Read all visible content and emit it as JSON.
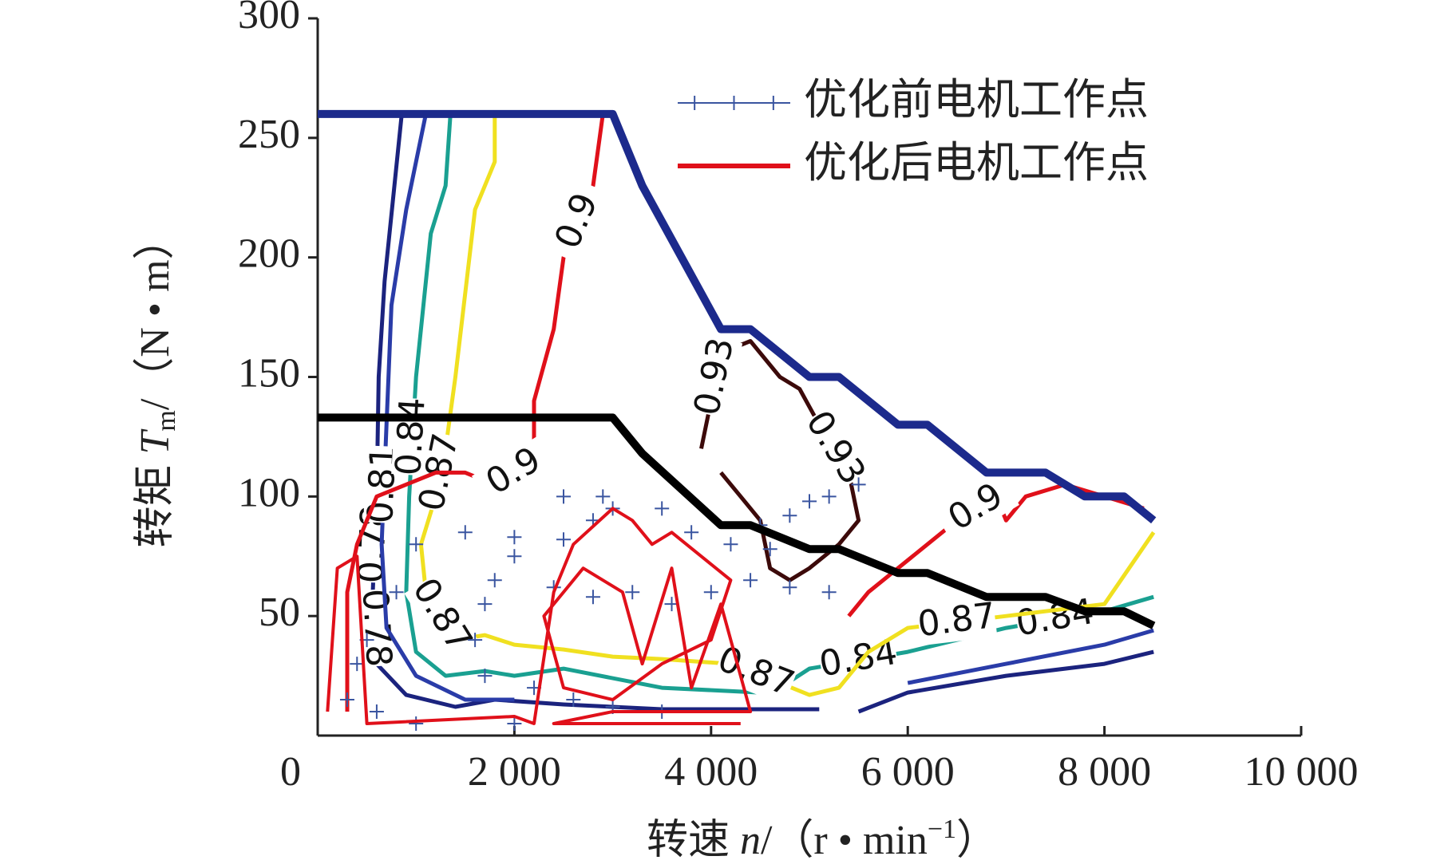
{
  "chart_data": {
    "type": "contour",
    "xlabel": {
      "prefix": "转速",
      "symbol": "n",
      "unit": "/（r • min",
      "superscript": "−1",
      "close": "）"
    },
    "ylabel": {
      "prefix": "转矩",
      "symbol": "T",
      "subscript": "m",
      "unit": "/（N • m）"
    },
    "xlim": [
      0,
      10000
    ],
    "ylim": [
      0,
      300
    ],
    "xticks": [
      0,
      {
        "value": 2000,
        "label": "2 000"
      },
      {
        "value": 4000,
        "label": "4 000"
      },
      {
        "value": 6000,
        "label": "6 000"
      },
      {
        "value": 8000,
        "label": "8 000"
      },
      {
        "value": 10000,
        "label": "10 000"
      }
    ],
    "yticks": [
      50,
      100,
      150,
      200,
      250,
      300
    ],
    "legend": "upper right",
    "curves": [
      {
        "color": "#1c2a8c",
        "x": [
          0,
          3000,
          3300,
          4100,
          4400,
          5000,
          5300,
          5900,
          6200,
          6800,
          7400,
          7800,
          8200,
          8500
        ],
        "y": [
          260,
          260,
          230,
          170,
          170,
          150,
          150,
          130,
          130,
          110,
          110,
          100,
          100,
          90
        ]
      },
      {
        "color": "#000000",
        "x": [
          0,
          3000,
          3300,
          4100,
          4400,
          5000,
          5300,
          5900,
          6200,
          6800,
          7400,
          7800,
          8200,
          8500
        ],
        "y": [
          133,
          133,
          118,
          88,
          88,
          78,
          78,
          68,
          68,
          58,
          58,
          52,
          52,
          46
        ]
      }
    ],
    "contours": [
      {
        "level": 0.78,
        "color": "#1b237e",
        "x": [
          855,
          780,
          680,
          620,
          600,
          560,
          600,
          900,
          1400,
          1800,
          2500,
          3500,
          4500,
          5100,
          null,
          5500,
          6000,
          7000,
          8000,
          8500
        ],
        "y": [
          260,
          230,
          190,
          150,
          100,
          60,
          30,
          17,
          12,
          15,
          13,
          11,
          11,
          11,
          null,
          10,
          18,
          25,
          30,
          35
        ]
      },
      {
        "level": 0.81,
        "color": "#2a3ca8",
        "x": [
          1100,
          900,
          750,
          700,
          650,
          700,
          1000,
          1500,
          2000,
          null,
          6000,
          7000,
          8000,
          8500
        ],
        "y": [
          260,
          220,
          180,
          130,
          80,
          45,
          25,
          15,
          15,
          null,
          22,
          30,
          38,
          44
        ]
      },
      {
        "level": 0.84,
        "color": "#1aa091",
        "x": [
          1350,
          1300,
          1150,
          1000,
          930,
          900,
          1000,
          1300,
          1700,
          2000,
          2500,
          3500,
          4500,
          4700,
          5000,
          6000,
          7000,
          8000,
          8500
        ],
        "y": [
          260,
          230,
          210,
          150,
          100,
          60,
          35,
          25,
          27,
          25,
          28,
          20,
          18,
          20,
          28,
          35,
          45,
          52,
          58
        ]
      },
      {
        "level": 0.87,
        "color": "#f0e020",
        "x": [
          1800,
          1800,
          1600,
          1400,
          1300,
          1200,
          1050,
          1100,
          1400,
          1700,
          2000,
          2500,
          3000,
          3500,
          4200,
          4700,
          5000,
          5300,
          5600,
          6000,
          7000,
          8000,
          8500
        ],
        "y": [
          260,
          240,
          220,
          150,
          120,
          100,
          80,
          60,
          40,
          42,
          38,
          36,
          33,
          32,
          30,
          22,
          17,
          20,
          35,
          45,
          50,
          55,
          85
        ]
      },
      {
        "level": 0.9,
        "color": "#e0101a",
        "x": [
          2900,
          2800,
          2500,
          2400,
          2200,
          2200,
          1800,
          1500,
          1200,
          600,
          400,
          300,
          300,
          null,
          5400,
          5600,
          6200,
          6500,
          6900,
          7000,
          7200,
          7600,
          8000,
          8400
        ],
        "y": [
          260,
          230,
          200,
          170,
          140,
          115,
          105,
          110,
          110,
          100,
          80,
          60,
          10,
          null,
          50,
          60,
          80,
          90,
          100,
          90,
          100,
          105,
          100,
          95
        ]
      },
      {
        "level": 0.93,
        "color": "#3c0a0a",
        "x": [
          3900,
          4000,
          4100,
          4400,
          4500,
          4700,
          4900,
          5100,
          5400,
          5500,
          5300,
          5000,
          4800,
          4600,
          4500,
          4300,
          4100
        ],
        "y": [
          120,
          140,
          160,
          165,
          160,
          150,
          145,
          130,
          110,
          90,
          80,
          70,
          65,
          70,
          90,
          100,
          110
        ]
      }
    ],
    "series": [
      {
        "name": "优化前电机工作点",
        "color": "#3a55a0",
        "marker": "+",
        "x": [
          300,
          500,
          800,
          1000,
          1500,
          2000,
          2500,
          2800,
          3000,
          3500,
          3800,
          4200,
          4500,
          4800,
          5200,
          5500,
          5000,
          4600,
          4400,
          4000,
          3600,
          3200,
          2800,
          2400,
          2000,
          1800,
          1700,
          1600,
          1700,
          2200,
          2600,
          3000,
          3500,
          2000,
          1000,
          600,
          400,
          5200,
          4800,
          2500,
          2900
        ],
        "y": [
          15,
          40,
          60,
          80,
          85,
          83,
          82,
          90,
          95,
          95,
          85,
          80,
          88,
          92,
          100,
          105,
          98,
          78,
          65,
          60,
          55,
          60,
          58,
          62,
          75,
          65,
          55,
          40,
          25,
          20,
          15,
          12,
          10,
          5,
          5,
          10,
          30,
          60,
          62,
          100,
          100
        ]
      },
      {
        "name": "优化后电机工作点",
        "color": "#e0101a",
        "x": [
          100,
          200,
          400,
          500,
          2000,
          2200,
          2400,
          2600,
          3000,
          3200,
          3400,
          3600,
          3900,
          4200,
          4000,
          3500,
          3000,
          2500,
          2300,
          2700,
          3100,
          3300,
          3600,
          3800,
          4100,
          4400,
          3000,
          2400,
          3600,
          4300
        ],
        "y": [
          10,
          70,
          75,
          5,
          8,
          5,
          60,
          80,
          95,
          90,
          80,
          85,
          75,
          65,
          40,
          30,
          15,
          20,
          50,
          70,
          60,
          30,
          70,
          20,
          55,
          10,
          10,
          5,
          5,
          5
        ]
      }
    ]
  }
}
